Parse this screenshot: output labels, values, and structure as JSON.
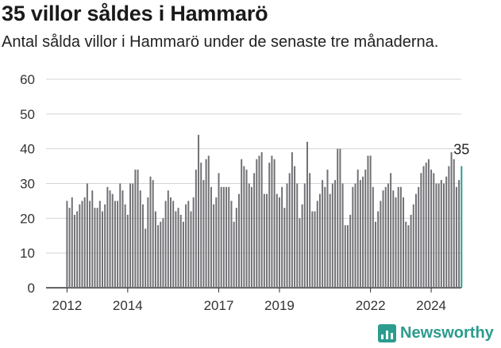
{
  "header": {
    "title": "35 villor såldes i Hammarö",
    "subtitle": "Antal sålda villor i Hammarö under de senaste tre månaderna."
  },
  "branding": {
    "logo_text": "Newsworthy",
    "logo_icon": "newsworthy-logo-icon",
    "color": "#2b9c8d"
  },
  "chart_data": {
    "type": "bar",
    "y_ticks": [
      "0",
      "10",
      "20",
      "30",
      "40",
      "50",
      "60"
    ],
    "x_ticks": [
      "2012",
      "2014",
      "2017",
      "2019",
      "2022",
      "2024"
    ],
    "ylim": [
      0,
      60
    ],
    "grid": true,
    "bar_color": "#707075",
    "highlight_color": "#2b9c8d",
    "last_label": "35",
    "x_start": "2012-01",
    "x_end": "2024-12",
    "values": [
      25,
      23,
      26,
      21,
      22,
      24,
      25,
      26,
      30,
      25,
      28,
      23,
      23,
      25,
      22,
      24,
      29,
      28,
      27,
      25,
      25,
      30,
      28,
      24,
      21,
      30,
      30,
      34,
      34,
      28,
      24,
      17,
      26,
      32,
      31,
      22,
      18,
      19,
      20,
      25,
      28,
      26,
      25,
      22,
      23,
      21,
      19,
      24,
      25,
      22,
      26,
      34,
      44,
      36,
      31,
      37,
      38,
      29,
      24,
      26,
      33,
      29,
      29,
      29,
      29,
      25,
      19,
      23,
      27,
      37,
      35,
      34,
      30,
      29,
      33,
      37,
      38,
      39,
      27,
      27,
      36,
      38,
      37,
      27,
      26,
      29,
      23,
      30,
      33,
      39,
      35,
      30,
      20,
      24,
      30,
      42,
      33,
      22,
      22,
      25,
      27,
      31,
      29,
      34,
      27,
      30,
      31,
      40,
      40,
      30,
      18,
      18,
      21,
      29,
      30,
      34,
      31,
      32,
      34,
      38,
      38,
      29,
      19,
      22,
      25,
      28,
      29,
      30,
      33,
      28,
      26,
      29,
      29,
      26,
      19,
      18,
      21,
      24,
      27,
      29,
      33,
      35,
      36,
      37,
      34,
      33,
      30,
      30,
      31,
      30,
      32,
      35,
      39,
      37,
      29,
      31,
      35
    ]
  }
}
